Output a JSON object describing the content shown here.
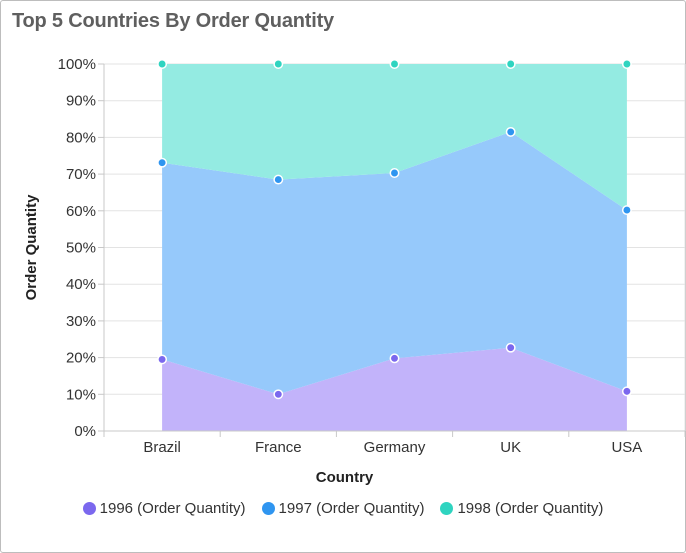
{
  "title": "Top 5 Countries By Order Quantity",
  "chart_data": {
    "type": "area",
    "stacked": "100%",
    "title": "Top 5 Countries By Order Quantity",
    "xlabel": "Country",
    "ylabel": "Order Quantity",
    "categories": [
      "Brazil",
      "France",
      "Germany",
      "UK",
      "USA"
    ],
    "ylim": [
      0,
      100
    ],
    "yticks": [
      0,
      10,
      20,
      30,
      40,
      50,
      60,
      70,
      80,
      90,
      100
    ],
    "ytick_labels": [
      "0%",
      "10%",
      "20%",
      "30%",
      "40%",
      "50%",
      "60%",
      "70%",
      "80%",
      "90%",
      "100%"
    ],
    "grid": true,
    "legend_position": "bottom",
    "series": [
      {
        "name": "1996 (Order Quantity)",
        "color": "#7b68ee",
        "fill": "#c2b3fa",
        "values": [
          19.5,
          10,
          19.8,
          22.7,
          10.8
        ]
      },
      {
        "name": "1997 (Order Quantity)",
        "color": "#2f95f0",
        "fill": "#96c9fb",
        "values": [
          53.6,
          58.5,
          50.5,
          58.8,
          49.4
        ]
      },
      {
        "name": "1998 (Order Quantity)",
        "color": "#2fd4c0",
        "fill": "#94ebe2",
        "values": [
          26.9,
          31.5,
          29.7,
          18.5,
          39.8
        ]
      }
    ]
  }
}
